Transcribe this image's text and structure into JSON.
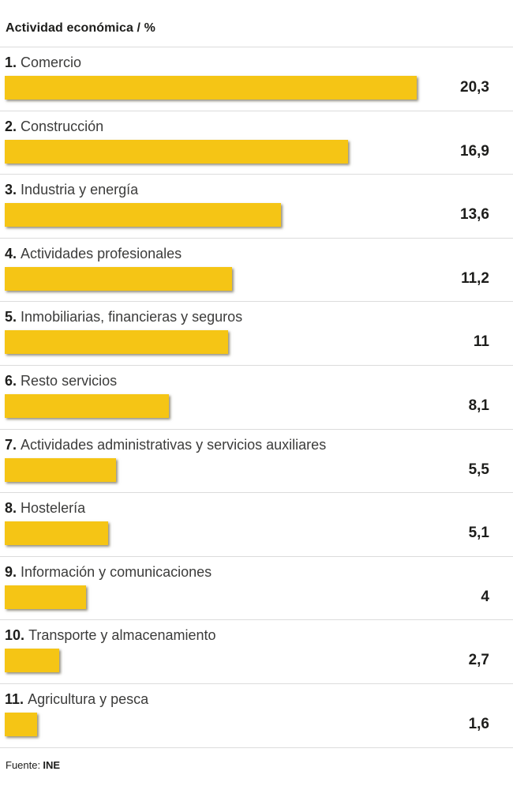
{
  "title": "Actividad económica / %",
  "source": {
    "label": "Fuente:",
    "name": "INE"
  },
  "colors": {
    "bar": "#F5C515",
    "bar_shadow": "rgba(40,32,0,0.5)",
    "divider": "#DCDCDC",
    "title_text": "#1D1D1B",
    "label_text": "#3C3C3B",
    "value_text": "#1D1D1B",
    "background": "#FFFFFF"
  },
  "chart_data": {
    "type": "bar",
    "orientation": "horizontal",
    "title": "Actividad económica / %",
    "unit": "%",
    "xlim": [
      0,
      20.3
    ],
    "grid": false,
    "legend": false,
    "ranks": [
      "1.",
      "2.",
      "3.",
      "4.",
      "5.",
      "6.",
      "7.",
      "8.",
      "9.",
      "10.",
      "11."
    ],
    "categories": [
      "Comercio",
      "Construcción",
      "Industria y energía",
      "Actividades profesionales",
      "Inmobiliarias, financieras y seguros",
      "Resto servicios",
      "Actividades administrativas y servicios auxiliares",
      "Hostelería",
      "Información y comunicaciones",
      "Transporte y almacenamiento",
      "Agricultura y pesca"
    ],
    "values": [
      20.3,
      16.9,
      13.6,
      11.2,
      11,
      8.1,
      5.5,
      5.1,
      4,
      2.7,
      1.6
    ],
    "value_labels": [
      "20,3",
      "16,9",
      "13,6",
      "11,2",
      "11",
      "8,1",
      "5,5",
      "5,1",
      "4",
      "2,7",
      "1,6"
    ],
    "source": "Fuente: INE"
  }
}
